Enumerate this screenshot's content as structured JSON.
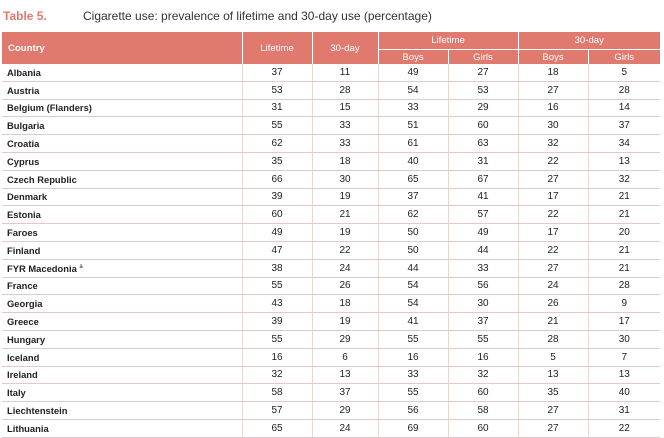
{
  "table_label": "Table 5.",
  "table_title": "Cigarette use: prevalence of lifetime and 30-day use (percentage)",
  "headers": {
    "country": "Country",
    "lifetime": "Lifetime",
    "thirty_day": "30-day",
    "lifetime_group": "Lifetime",
    "thirty_day_group": "30-day",
    "boys": "Boys",
    "girls": "Girls"
  },
  "rows": [
    {
      "country": "Albania",
      "note": "",
      "lifetime": "37",
      "thirty_day": "11",
      "lt_boys": "49",
      "lt_girls": "27",
      "td_boys": "18",
      "td_girls": "5"
    },
    {
      "country": "Austria",
      "note": "",
      "lifetime": "53",
      "thirty_day": "28",
      "lt_boys": "54",
      "lt_girls": "53",
      "td_boys": "27",
      "td_girls": "28"
    },
    {
      "country": "Belgium (Flanders)",
      "note": "",
      "lifetime": "31",
      "thirty_day": "15",
      "lt_boys": "33",
      "lt_girls": "29",
      "td_boys": "16",
      "td_girls": "14"
    },
    {
      "country": "Bulgaria",
      "note": "",
      "lifetime": "55",
      "thirty_day": "33",
      "lt_boys": "51",
      "lt_girls": "60",
      "td_boys": "30",
      "td_girls": "37"
    },
    {
      "country": "Croatia",
      "note": "",
      "lifetime": "62",
      "thirty_day": "33",
      "lt_boys": "61",
      "lt_girls": "63",
      "td_boys": "32",
      "td_girls": "34"
    },
    {
      "country": "Cyprus",
      "note": "",
      "lifetime": "35",
      "thirty_day": "18",
      "lt_boys": "40",
      "lt_girls": "31",
      "td_boys": "22",
      "td_girls": "13"
    },
    {
      "country": "Czech Republic",
      "note": "",
      "lifetime": "66",
      "thirty_day": "30",
      "lt_boys": "65",
      "lt_girls": "67",
      "td_boys": "27",
      "td_girls": "32"
    },
    {
      "country": "Denmark",
      "note": "",
      "lifetime": "39",
      "thirty_day": "19",
      "lt_boys": "37",
      "lt_girls": "41",
      "td_boys": "17",
      "td_girls": "21"
    },
    {
      "country": "Estonia",
      "note": "",
      "lifetime": "60",
      "thirty_day": "21",
      "lt_boys": "62",
      "lt_girls": "57",
      "td_boys": "22",
      "td_girls": "21"
    },
    {
      "country": "Faroes",
      "note": "",
      "lifetime": "49",
      "thirty_day": "19",
      "lt_boys": "50",
      "lt_girls": "49",
      "td_boys": "17",
      "td_girls": "20"
    },
    {
      "country": "Finland",
      "note": "",
      "lifetime": "47",
      "thirty_day": "22",
      "lt_boys": "50",
      "lt_girls": "44",
      "td_boys": "22",
      "td_girls": "21"
    },
    {
      "country": "FYR Macedonia",
      "note": "a",
      "lifetime": "38",
      "thirty_day": "24",
      "lt_boys": "44",
      "lt_girls": "33",
      "td_boys": "27",
      "td_girls": "21"
    },
    {
      "country": "France",
      "note": "",
      "lifetime": "55",
      "thirty_day": "26",
      "lt_boys": "54",
      "lt_girls": "56",
      "td_boys": "24",
      "td_girls": "28"
    },
    {
      "country": "Georgia",
      "note": "",
      "lifetime": "43",
      "thirty_day": "18",
      "lt_boys": "54",
      "lt_girls": "30",
      "td_boys": "26",
      "td_girls": "9"
    },
    {
      "country": "Greece",
      "note": "",
      "lifetime": "39",
      "thirty_day": "19",
      "lt_boys": "41",
      "lt_girls": "37",
      "td_boys": "21",
      "td_girls": "17"
    },
    {
      "country": "Hungary",
      "note": "",
      "lifetime": "55",
      "thirty_day": "29",
      "lt_boys": "55",
      "lt_girls": "55",
      "td_boys": "28",
      "td_girls": "30"
    },
    {
      "country": "Iceland",
      "note": "",
      "lifetime": "16",
      "thirty_day": "6",
      "lt_boys": "16",
      "lt_girls": "16",
      "td_boys": "5",
      "td_girls": "7"
    },
    {
      "country": "Ireland",
      "note": "",
      "lifetime": "32",
      "thirty_day": "13",
      "lt_boys": "33",
      "lt_girls": "32",
      "td_boys": "13",
      "td_girls": "13"
    },
    {
      "country": "Italy",
      "note": "",
      "lifetime": "58",
      "thirty_day": "37",
      "lt_boys": "55",
      "lt_girls": "60",
      "td_boys": "35",
      "td_girls": "40"
    },
    {
      "country": "Liechtenstein",
      "note": "",
      "lifetime": "57",
      "thirty_day": "29",
      "lt_boys": "56",
      "lt_girls": "58",
      "td_boys": "27",
      "td_girls": "31"
    },
    {
      "country": "Lithuania",
      "note": "",
      "lifetime": "65",
      "thirty_day": "24",
      "lt_boys": "69",
      "lt_girls": "60",
      "td_boys": "27",
      "td_girls": "22"
    }
  ],
  "colors": {
    "header_bg": "#e07a6e",
    "label_accent": "#e07a6e",
    "row_border": "#e4c9c4"
  }
}
